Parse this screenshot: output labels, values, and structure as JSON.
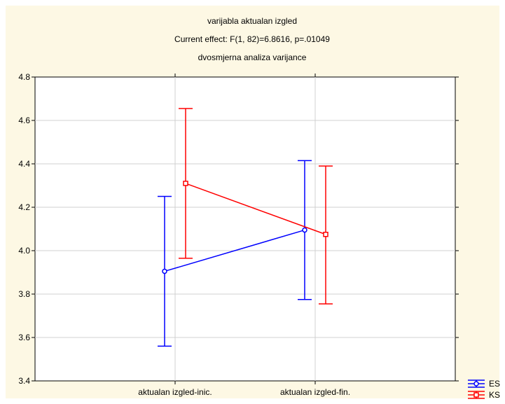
{
  "chart_data": {
    "type": "line",
    "title": "varijabla aktualan izgled",
    "subtitle": "Current effect: F(1, 82)=6.8616, p=.01049",
    "subtitle2": "dvosmjerna analiza varijance",
    "xlabel": "",
    "ylabel": "",
    "categories": [
      "aktualan izgled-inic.",
      "aktualan izgled-fin."
    ],
    "ylim": [
      3.4,
      4.8
    ],
    "yticks": [
      "3.4",
      "3.6",
      "3.8",
      "4.0",
      "4.2",
      "4.4",
      "4.6",
      "4.8"
    ],
    "grid": true,
    "legend_position": "bottom-right",
    "series": [
      {
        "name": "ES",
        "color": "#0000ff",
        "marker": "circle",
        "values": [
          3.905,
          4.095
        ],
        "lower": [
          3.56,
          3.775
        ],
        "upper": [
          4.25,
          4.415
        ]
      },
      {
        "name": "KS",
        "color": "#ff0000",
        "marker": "square",
        "values": [
          4.31,
          4.075
        ],
        "lower": [
          3.965,
          3.755
        ],
        "upper": [
          4.655,
          4.39
        ]
      }
    ]
  }
}
